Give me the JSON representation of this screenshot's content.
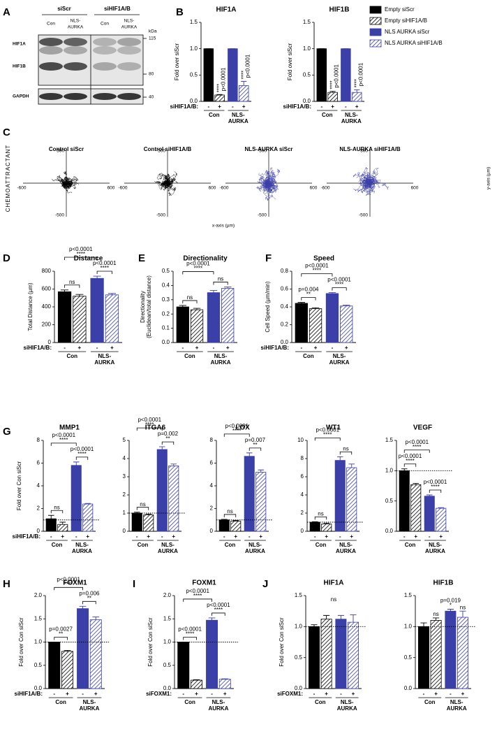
{
  "blot": {
    "panel": "A",
    "groups": [
      "siScr",
      "siHIF1A/B"
    ],
    "lanes": [
      [
        "Con"
      ],
      [
        "NLS-",
        "AURKA"
      ],
      [
        "Con"
      ],
      [
        "NLS-",
        "AURKA"
      ]
    ],
    "rows": [
      "HIF1A",
      "HIF1B",
      "GAPDH"
    ],
    "unit": "kDa",
    "markers": [
      "115",
      "80",
      "40"
    ]
  },
  "legend": [
    {
      "name": "Empty siScr",
      "color": "#000000",
      "hatched": false
    },
    {
      "name": "Empty siHIF1A/B",
      "color": "#000000",
      "hatched": true
    },
    {
      "name": "NLS AURKA siScr",
      "color": "#3b3fa8",
      "hatched": false
    },
    {
      "name": "NLS AURKA siHIF1A/B",
      "color": "#3b3fa8",
      "hatched": true
    }
  ],
  "tracks": {
    "panel": "C",
    "side_label": "CHEMOATTRACTANT",
    "titles": [
      "Control siScr",
      "Control siHIF1A/B",
      "NLS-AURKA siScr",
      "NLS-AURKA siHIF1A/B"
    ],
    "colors": [
      "#000000",
      "#000000",
      "#3b3fa8",
      "#3b3fa8"
    ],
    "tick_labels": [
      "-600",
      "600",
      "500",
      "-500"
    ],
    "x_label": "x-axis (µm)",
    "y_label": "y-axis (µm)"
  },
  "chart_data": [
    {
      "type": "bar",
      "panel": "B",
      "title": "HIF1A",
      "ylabel": "Fold over siScr",
      "row_label": "siHIF1A/B:",
      "categories": [
        "-",
        "+",
        "-",
        "+"
      ],
      "groups": [
        [
          "Con"
        ],
        [
          "NLS-",
          "AURKA"
        ]
      ],
      "values": [
        1,
        0.12,
        1,
        0.3
      ],
      "errors": [
        0,
        0.01,
        0,
        0.08
      ],
      "colors": [
        "#000000",
        "#000000",
        "#3b3fa8",
        "#3b3fa8"
      ],
      "hatched": [
        false,
        true,
        false,
        true
      ],
      "ylim": [
        0,
        1.5
      ],
      "yticks": [
        {
          "value": 0,
          "label": "0.0"
        },
        {
          "value": 0.5,
          "label": "0.5"
        },
        {
          "value": 1,
          "label": "1.0"
        },
        {
          "value": 1.5,
          "label": "1.5"
        }
      ],
      "annotations": [
        [
          "p<0.0001",
          "****"
        ],
        [
          "p<0.0001",
          "****"
        ]
      ]
    },
    {
      "type": "bar",
      "title": "HIF1B",
      "ylabel": "Fold over siScr",
      "row_label": "siHIF1A/B:",
      "categories": [
        "-",
        "+",
        "-",
        "+"
      ],
      "groups": [
        [
          "Con"
        ],
        [
          "NLS-",
          "AURKA"
        ]
      ],
      "values": [
        1,
        0.17,
        1,
        0.17
      ],
      "errors": [
        0,
        0.02,
        0,
        0.05
      ],
      "colors": [
        "#000000",
        "#000000",
        "#3b3fa8",
        "#3b3fa8"
      ],
      "hatched": [
        false,
        true,
        false,
        true
      ],
      "ylim": [
        0,
        1.5
      ],
      "yticks": [
        {
          "value": 0,
          "label": "0.0"
        },
        {
          "value": 0.5,
          "label": "0.5"
        },
        {
          "value": 1,
          "label": "1.0"
        },
        {
          "value": 1.5,
          "label": "1.5"
        }
      ],
      "annotations": [
        [
          "p<0.0001",
          "****"
        ],
        [
          "p<0.0001",
          "****"
        ]
      ]
    },
    {
      "type": "bar",
      "panel": "D",
      "title": "Distance",
      "ylabel": "Total Distance (µm)",
      "row_label": "siHIF1A/B:",
      "categories": [
        "-",
        "+",
        "-",
        "+"
      ],
      "groups": [
        [
          "Con"
        ],
        [
          "NLS-",
          "AURKA"
        ]
      ],
      "values": [
        570,
        520,
        720,
        535
      ],
      "errors": [
        20,
        20,
        25,
        15
      ],
      "colors": [
        "#000000",
        "#000000",
        "#3b3fa8",
        "#3b3fa8"
      ],
      "hatched": [
        false,
        true,
        false,
        true
      ],
      "ylim": [
        0,
        800
      ],
      "yticks": [
        0,
        200,
        400,
        600,
        800
      ],
      "annotations": [
        [
          "ns"
        ],
        [
          "p<0.0001",
          "****"
        ],
        [
          "p<0.0001",
          "****"
        ]
      ]
    },
    {
      "type": "bar",
      "panel": "E",
      "title": "Directionality",
      "ylabel": [
        "Directionality",
        "(Euclidean/total distance)"
      ],
      "categories": [
        "-",
        "+",
        "-",
        "+"
      ],
      "groups": [
        [
          "Con"
        ],
        [
          "NLS-",
          "AURKA"
        ]
      ],
      "values": [
        0.25,
        0.23,
        0.35,
        0.38
      ],
      "errors": [
        0.01,
        0.01,
        0.015,
        0.01
      ],
      "colors": [
        "#000000",
        "#000000",
        "#3b3fa8",
        "#3b3fa8"
      ],
      "hatched": [
        false,
        true,
        false,
        true
      ],
      "ylim": [
        0,
        0.5
      ],
      "yticks": [
        {
          "value": 0,
          "label": "0.0"
        },
        0.1,
        0.2,
        0.3,
        0.4,
        0.5
      ],
      "annotations": [
        [
          "ns"
        ],
        [
          "p<0.0001",
          "****"
        ],
        [
          "ns"
        ]
      ]
    },
    {
      "type": "bar",
      "panel": "F",
      "title": "Speed",
      "ylabel": "Cell Speed (µm/min)",
      "row_label": "siHIF1A/B:",
      "categories": [
        "-",
        "+",
        "-",
        "+"
      ],
      "groups": [
        [
          "Con"
        ],
        [
          "NLS-",
          "AURKA"
        ]
      ],
      "values": [
        0.44,
        0.38,
        0.55,
        0.41
      ],
      "errors": [
        0.01,
        0.01,
        0.01,
        0.01
      ],
      "colors": [
        "#000000",
        "#000000",
        "#3b3fa8",
        "#3b3fa8"
      ],
      "hatched": [
        false,
        true,
        false,
        true
      ],
      "ylim": [
        0,
        0.8
      ],
      "yticks": [
        {
          "value": 0,
          "label": "0.0"
        },
        0.2,
        0.4,
        0.6,
        0.8
      ],
      "annotations": [
        [
          "p=0.004",
          "**"
        ],
        [
          "p<0.0001",
          "****"
        ],
        [
          "p<0.0001",
          "****"
        ]
      ]
    },
    {
      "type": "bar",
      "panel": "G",
      "title": "MMP1",
      "ylabel": "Fold over Con siScr",
      "row_label": "siHIF1A/B:",
      "categories": [
        "-",
        "+",
        "-",
        "+"
      ],
      "groups": [
        [
          "Con"
        ],
        [
          "NLS-",
          "AURKA"
        ]
      ],
      "values": [
        1.1,
        0.6,
        5.8,
        2.4
      ],
      "errors": [
        0.3,
        0.2,
        0.3,
        0.05
      ],
      "colors": [
        "#000000",
        "#000000",
        "#3b3fa8",
        "#3b3fa8"
      ],
      "hatched": [
        false,
        true,
        false,
        true
      ],
      "ylim": [
        0,
        8
      ],
      "yticks": [
        0,
        2,
        4,
        6,
        8
      ],
      "refline": 1,
      "annotations": [
        [
          "ns"
        ],
        [
          "p<0.0001",
          "****"
        ],
        [
          "p<0.0001",
          "****"
        ]
      ]
    },
    {
      "type": "bar",
      "title": "ITGA6",
      "categories": [
        "-",
        "+",
        "-",
        "+"
      ],
      "groups": [
        [
          "Con"
        ],
        [
          "NLS-",
          "AURKA"
        ]
      ],
      "values": [
        1,
        0.9,
        4.5,
        3.6
      ],
      "errors": [
        0.05,
        0.05,
        0.15,
        0.1
      ],
      "colors": [
        "#000000",
        "#000000",
        "#3b3fa8",
        "#3b3fa8"
      ],
      "hatched": [
        false,
        true,
        false,
        true
      ],
      "ylim": [
        0,
        5
      ],
      "yticks": [
        0,
        1,
        2,
        3,
        4,
        5
      ],
      "refline": 1,
      "annotations": [
        [
          "ns"
        ],
        [
          "p<0.0001",
          "****"
        ],
        [
          "p=0.002",
          "**"
        ]
      ]
    },
    {
      "type": "bar",
      "title": "LOX",
      "categories": [
        "-",
        "+",
        "-",
        "+"
      ],
      "groups": [
        [
          "Con"
        ],
        [
          "NLS-",
          "AURKA"
        ]
      ],
      "values": [
        1,
        0.9,
        6.6,
        5.2
      ],
      "errors": [
        0.05,
        0.05,
        0.3,
        0.2
      ],
      "colors": [
        "#000000",
        "#000000",
        "#3b3fa8",
        "#3b3fa8"
      ],
      "hatched": [
        false,
        true,
        false,
        true
      ],
      "ylim": [
        0,
        8
      ],
      "yticks": [
        0,
        2,
        4,
        6,
        8
      ],
      "refline": 1,
      "annotations": [
        [
          "ns"
        ],
        [
          "p<0.0001",
          "****"
        ],
        [
          "p=0.007",
          "**"
        ]
      ]
    },
    {
      "type": "bar",
      "title": "WT1",
      "categories": [
        "-",
        "+",
        "-",
        "+"
      ],
      "groups": [
        [
          "Con"
        ],
        [
          "NLS-",
          "AURKA"
        ]
      ],
      "values": [
        1,
        0.8,
        7.8,
        7.0
      ],
      "errors": [
        0.05,
        0.1,
        0.4,
        0.4
      ],
      "colors": [
        "#000000",
        "#000000",
        "#3b3fa8",
        "#3b3fa8"
      ],
      "hatched": [
        false,
        true,
        false,
        true
      ],
      "ylim": [
        0,
        10
      ],
      "yticks": [
        0,
        2,
        4,
        6,
        8,
        10
      ],
      "refline": 1,
      "annotations": [
        [
          "ns"
        ],
        [
          "p<0.0001",
          "****"
        ],
        [
          "ns"
        ]
      ]
    },
    {
      "type": "bar",
      "title": "VEGF",
      "categories": [
        "-",
        "+",
        "-",
        "+"
      ],
      "groups": [
        [
          "Con"
        ],
        [
          "NLS-",
          "AURKA"
        ]
      ],
      "values": [
        1.0,
        0.77,
        0.58,
        0.38
      ],
      "errors": [
        0.03,
        0.02,
        0.02,
        0.01
      ],
      "colors": [
        "#000000",
        "#000000",
        "#3b3fa8",
        "#3b3fa8"
      ],
      "hatched": [
        false,
        true,
        false,
        true
      ],
      "ylim": [
        0,
        1.5
      ],
      "yticks": [
        {
          "value": 0,
          "label": "0.0"
        },
        {
          "value": 0.5,
          "label": "0.5"
        },
        {
          "value": 1,
          "label": "1.0"
        },
        {
          "value": 1.5,
          "label": "1.5"
        }
      ],
      "refline": 1,
      "annotations": [
        [
          "p<0.0001",
          "****"
        ],
        [
          "p<0.0001",
          "****"
        ],
        [
          "p<0.0001",
          "****"
        ]
      ]
    },
    {
      "type": "bar",
      "panel": "H",
      "title": "FOXM1",
      "ylabel": "Fold over Con siScr",
      "row_label": "siHIF1A/B:",
      "categories": [
        "-",
        "+",
        "-",
        "+"
      ],
      "groups": [
        [
          "Con"
        ],
        [
          "NLS-",
          "AURKA"
        ]
      ],
      "values": [
        1.0,
        0.8,
        1.72,
        1.48
      ],
      "errors": [
        0,
        0.02,
        0.05,
        0.06
      ],
      "colors": [
        "#000000",
        "#000000",
        "#3b3fa8",
        "#3b3fa8"
      ],
      "hatched": [
        false,
        true,
        false,
        true
      ],
      "ylim": [
        0,
        2
      ],
      "yticks": [
        {
          "value": 0,
          "label": "0.0"
        },
        {
          "value": 0.5,
          "label": "0.5"
        },
        {
          "value": 1,
          "label": "1.0"
        },
        {
          "value": 1.5,
          "label": "1.5"
        },
        {
          "value": 2,
          "label": "2.0"
        }
      ],
      "refline": 1,
      "annotations": [
        [
          "p=0.0027",
          "**"
        ],
        [
          "p<0.0001",
          "****"
        ],
        [
          "p=0.006",
          "**"
        ]
      ]
    },
    {
      "type": "bar",
      "panel": "I",
      "title": "FOXM1",
      "ylabel": "Fold over Con siScr",
      "row_label": "siFOXM1:",
      "categories": [
        "-",
        "+",
        "-",
        "+"
      ],
      "groups": [
        [
          "Con"
        ],
        [
          "NLS-",
          "AURKA"
        ]
      ],
      "values": [
        1.0,
        0.18,
        1.47,
        0.2
      ],
      "errors": [
        0,
        0.01,
        0.05,
        0.01
      ],
      "colors": [
        "#000000",
        "#000000",
        "#3b3fa8",
        "#3b3fa8"
      ],
      "hatched": [
        false,
        true,
        false,
        true
      ],
      "ylim": [
        0,
        2
      ],
      "yticks": [
        {
          "value": 0,
          "label": "0.0"
        },
        {
          "value": 0.5,
          "label": "0.5"
        },
        {
          "value": 1,
          "label": "1.0"
        },
        {
          "value": 1.5,
          "label": "1.5"
        },
        {
          "value": 2,
          "label": "2.0"
        }
      ],
      "refline": 1,
      "annotations": [
        [
          "p<0.0001",
          "****"
        ],
        [
          "p<0.0001",
          "****"
        ],
        [
          "p<0.0001",
          "****"
        ]
      ]
    },
    {
      "type": "bar",
      "panel": "J",
      "title": "HIF1A",
      "ylabel": "Fold over Con siScr",
      "row_label": "siFOXM1:",
      "categories": [
        "-",
        "+",
        "-",
        "+"
      ],
      "groups": [
        [
          "Con"
        ],
        [
          "NLS-",
          "AURKA"
        ]
      ],
      "values": [
        1.0,
        1.12,
        1.12,
        1.07
      ],
      "errors": [
        0.03,
        0.06,
        0.06,
        0.12
      ],
      "colors": [
        "#000000",
        "#000000",
        "#3b3fa8",
        "#3b3fa8"
      ],
      "hatched": [
        false,
        true,
        false,
        true
      ],
      "ylim": [
        0,
        1.5
      ],
      "yticks": [
        {
          "value": 0,
          "label": "0.0"
        },
        {
          "value": 0.5,
          "label": "0.5"
        },
        {
          "value": 1,
          "label": "1.0"
        },
        {
          "value": 1.5,
          "label": "1.5"
        }
      ],
      "refline": 1,
      "annotations": [
        [
          "ns"
        ]
      ]
    },
    {
      "type": "bar",
      "title": "HIF1B",
      "categories": [
        "-",
        "+",
        "-",
        "+"
      ],
      "groups": [
        [
          "Con"
        ],
        [
          "NLS-",
          "AURKA"
        ]
      ],
      "values": [
        1.0,
        1.1,
        1.25,
        1.15
      ],
      "errors": [
        0.06,
        0.04,
        0.03,
        0.1
      ],
      "colors": [
        "#000000",
        "#000000",
        "#3b3fa8",
        "#3b3fa8"
      ],
      "hatched": [
        false,
        true,
        false,
        true
      ],
      "ylim": [
        0,
        1.5
      ],
      "yticks": [
        {
          "value": 0,
          "label": "0.0"
        },
        {
          "value": 0.5,
          "label": "0.5"
        },
        {
          "value": 1,
          "label": "1.0"
        },
        {
          "value": 1.5,
          "label": "1.5"
        }
      ],
      "refline": 1,
      "annotations": [
        [
          "ns"
        ],
        [
          "p=0.019",
          "*"
        ],
        [
          "ns"
        ]
      ]
    }
  ]
}
